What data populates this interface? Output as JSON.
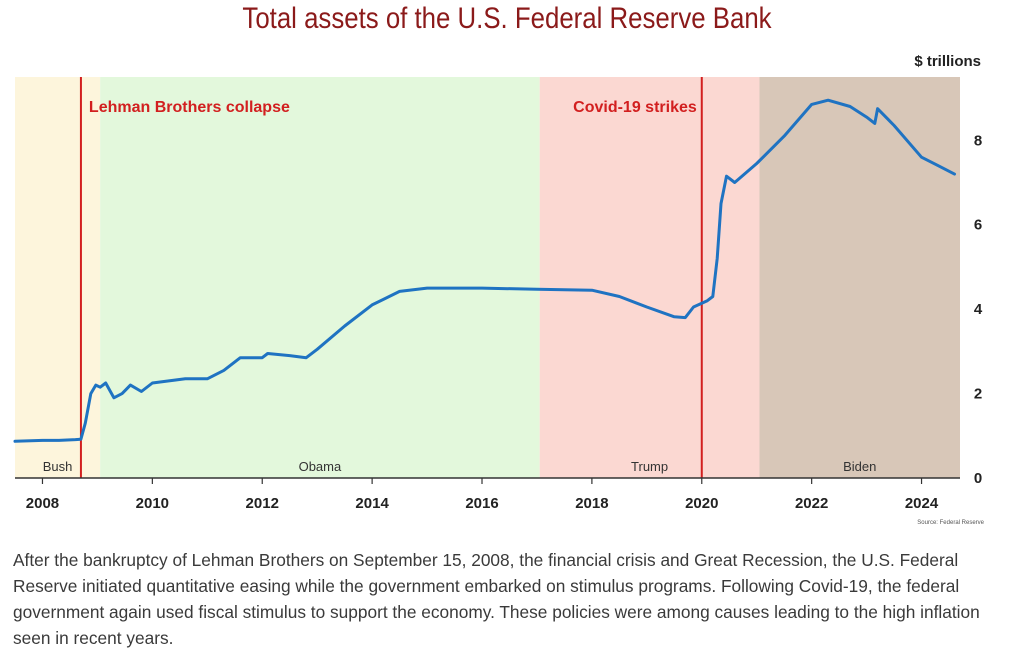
{
  "chart_data": {
    "type": "line",
    "title": "Total assets of the U.S. Federal Reserve Bank",
    "ylabel": "$ trillions",
    "xlim": [
      2007.5,
      2024.7
    ],
    "ylim": [
      0,
      9.5
    ],
    "x_ticks": [
      "2008",
      "2010",
      "2012",
      "2014",
      "2016",
      "2018",
      "2020",
      "2022",
      "2024"
    ],
    "y_ticks": [
      "0",
      "2",
      "4",
      "6",
      "8"
    ],
    "source": "Source: Federal Reserve",
    "eras": [
      {
        "label": "Bush",
        "start": 2007.5,
        "end": 2009.05,
        "color": "#fdf5dc"
      },
      {
        "label": "Obama",
        "start": 2009.05,
        "end": 2017.05,
        "color": "#e3f8dc"
      },
      {
        "label": "Trump",
        "start": 2017.05,
        "end": 2021.05,
        "color": "#fbd8d2"
      },
      {
        "label": "Biden",
        "start": 2021.05,
        "end": 2024.7,
        "color": "#d8c7b8"
      }
    ],
    "events": [
      {
        "label": "Lehman Brothers collapse",
        "x": 2008.7,
        "color": "#d21f1f"
      },
      {
        "label": "Covid-19 strikes",
        "x": 2020.0,
        "color": "#d21f1f"
      }
    ],
    "series": [
      {
        "color": "#1f73c2",
        "points": [
          [
            2007.5,
            0.87
          ],
          [
            2008.0,
            0.89
          ],
          [
            2008.3,
            0.89
          ],
          [
            2008.6,
            0.91
          ],
          [
            2008.7,
            0.92
          ],
          [
            2008.78,
            1.3
          ],
          [
            2008.88,
            2.0
          ],
          [
            2008.97,
            2.2
          ],
          [
            2009.05,
            2.15
          ],
          [
            2009.15,
            2.25
          ],
          [
            2009.3,
            1.9
          ],
          [
            2009.45,
            2.0
          ],
          [
            2009.6,
            2.2
          ],
          [
            2009.8,
            2.05
          ],
          [
            2010.0,
            2.25
          ],
          [
            2010.3,
            2.3
          ],
          [
            2010.6,
            2.35
          ],
          [
            2011.0,
            2.35
          ],
          [
            2011.3,
            2.55
          ],
          [
            2011.6,
            2.85
          ],
          [
            2012.0,
            2.85
          ],
          [
            2012.1,
            2.95
          ],
          [
            2012.5,
            2.9
          ],
          [
            2012.8,
            2.85
          ],
          [
            2013.0,
            3.05
          ],
          [
            2013.5,
            3.6
          ],
          [
            2014.0,
            4.1
          ],
          [
            2014.5,
            4.42
          ],
          [
            2015.0,
            4.5
          ],
          [
            2016.0,
            4.5
          ],
          [
            2017.0,
            4.47
          ],
          [
            2018.0,
            4.45
          ],
          [
            2018.5,
            4.3
          ],
          [
            2019.0,
            4.05
          ],
          [
            2019.5,
            3.82
          ],
          [
            2019.7,
            3.8
          ],
          [
            2019.85,
            4.05
          ],
          [
            2020.1,
            4.2
          ],
          [
            2020.2,
            4.3
          ],
          [
            2020.28,
            5.2
          ],
          [
            2020.35,
            6.5
          ],
          [
            2020.45,
            7.15
          ],
          [
            2020.6,
            7.0
          ],
          [
            2021.0,
            7.45
          ],
          [
            2021.5,
            8.1
          ],
          [
            2022.0,
            8.85
          ],
          [
            2022.3,
            8.95
          ],
          [
            2022.7,
            8.8
          ],
          [
            2023.0,
            8.55
          ],
          [
            2023.15,
            8.4
          ],
          [
            2023.2,
            8.75
          ],
          [
            2023.5,
            8.35
          ],
          [
            2024.0,
            7.6
          ],
          [
            2024.3,
            7.4
          ],
          [
            2024.6,
            7.2
          ]
        ]
      }
    ]
  },
  "caption": "After the bankruptcy of Lehman Brothers on September 15, 2008, the financial crisis and Great Recession, the U.S. Federal Reserve initiated quantitative easing while the government embarked on stimulus programs. Following Covid-19, the federal government again used fiscal stimulus to support the economy. These policies were among causes leading to the high inflation seen in recent years."
}
